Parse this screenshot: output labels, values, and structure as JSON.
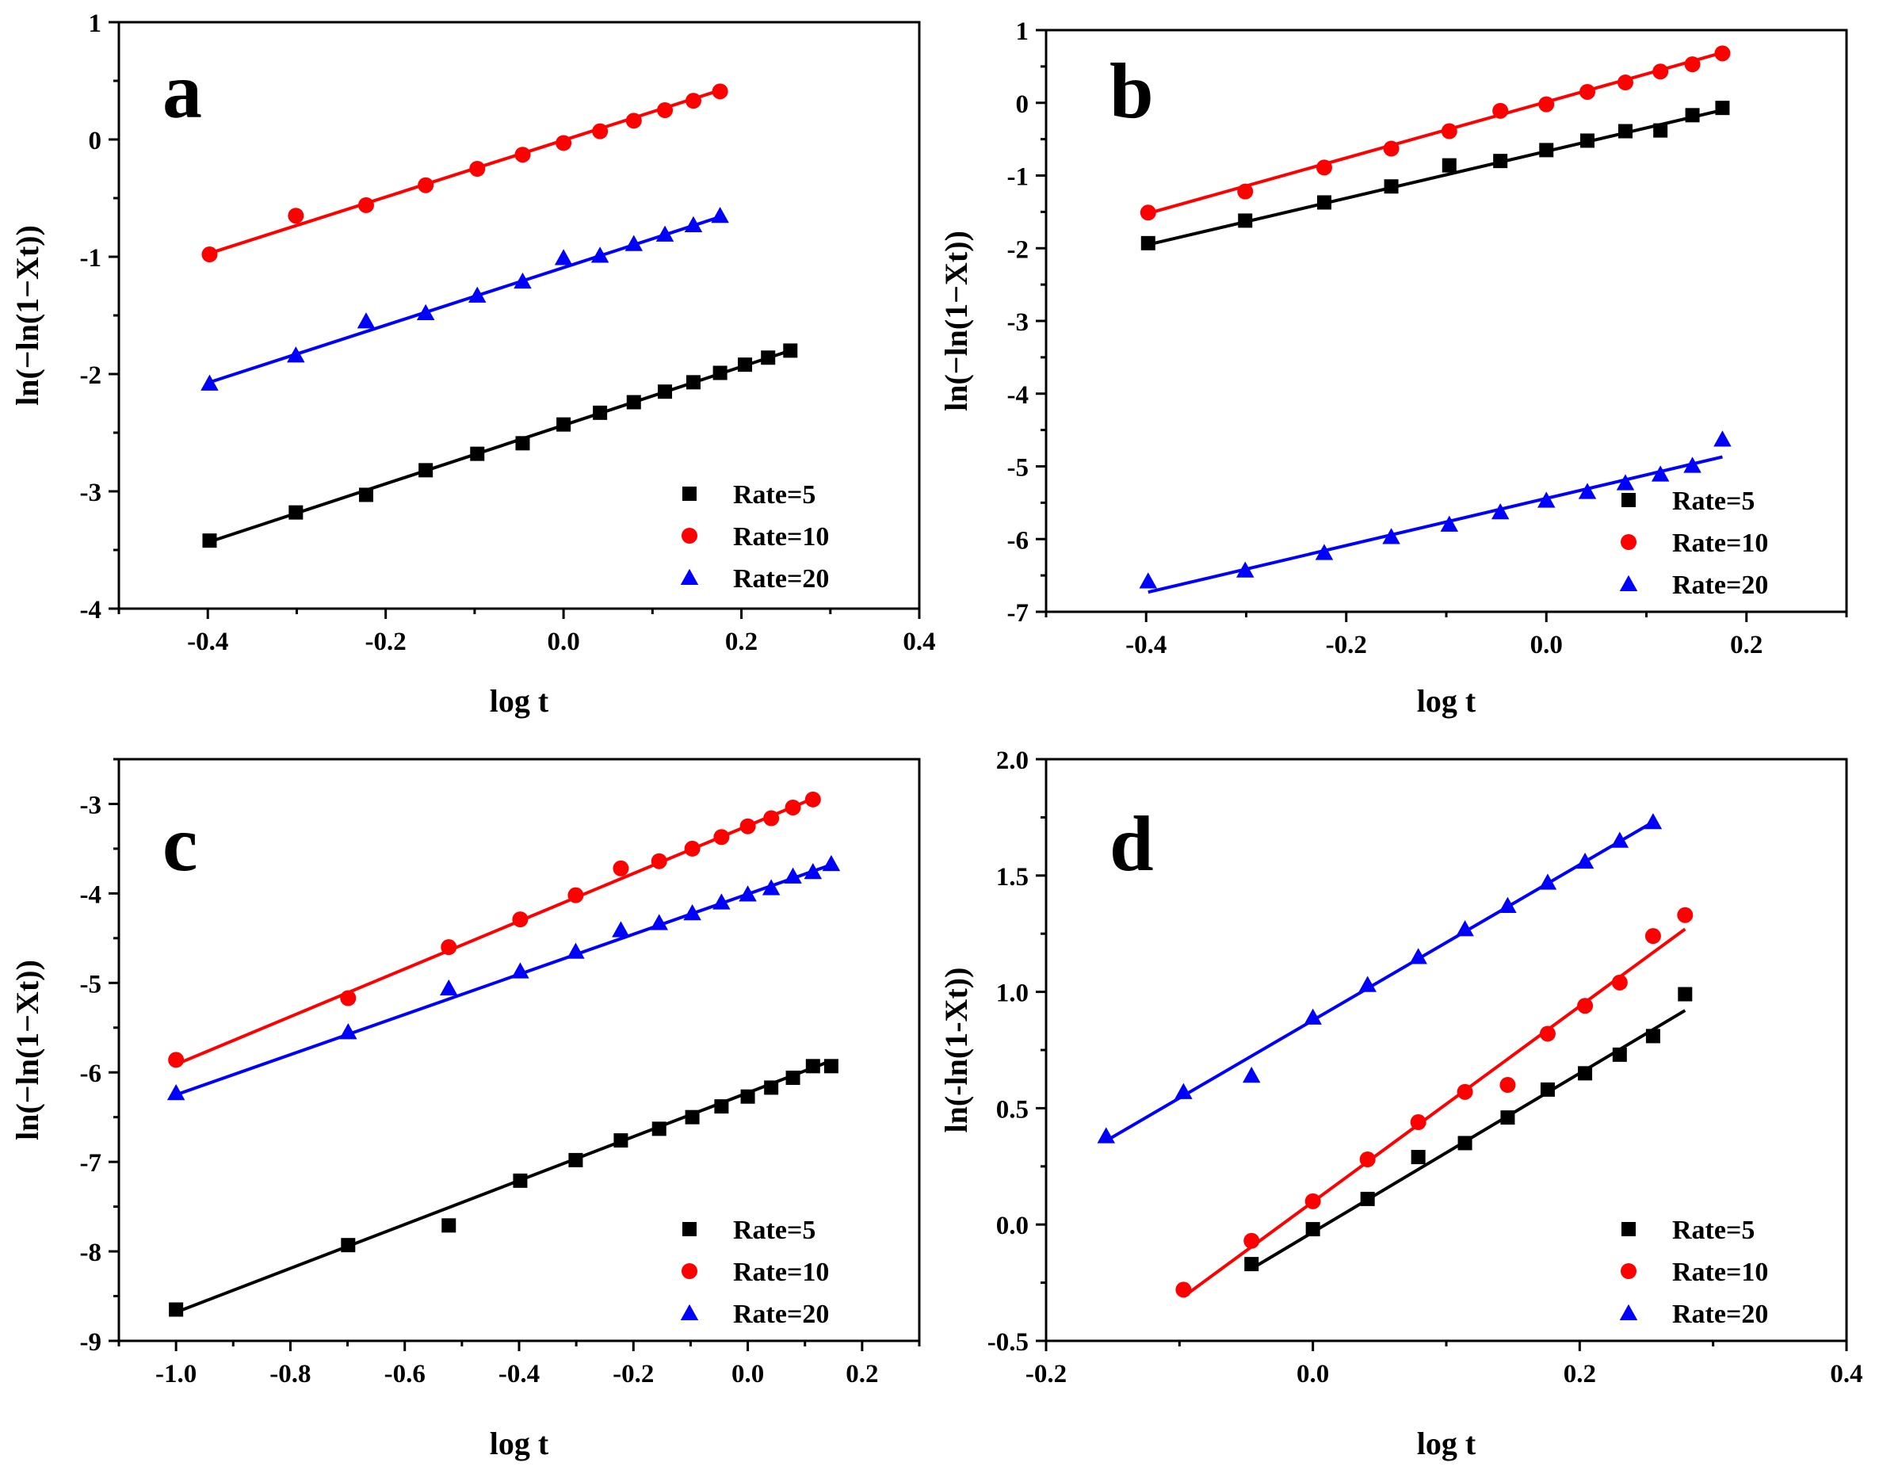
{
  "colors": {
    "rate5": "#000000",
    "rate10": "#ff0000",
    "rate20": "#0000ff"
  },
  "chart_data": [
    {
      "panel": "a",
      "type": "scatter",
      "xlabel": "log t",
      "ylabel": "ln(−ln(1−Xt))",
      "xlim": [
        -0.5,
        0.4
      ],
      "ylim": [
        -4,
        1
      ],
      "xticks": [
        -0.4,
        -0.2,
        0.0,
        0.2,
        0.4
      ],
      "xtick_labels": [
        "-0.4",
        "-0.2",
        "0.0",
        "0.2",
        "0.4"
      ],
      "yticks": [
        -4,
        -3,
        -2,
        -1,
        0,
        1
      ],
      "ytick_labels": [
        "-4",
        "-3",
        "-2",
        "-1",
        "0",
        "1"
      ],
      "legend_position": "bottom-right",
      "series": [
        {
          "name": "Rate=5",
          "marker": "square",
          "x": [
            -0.398,
            -0.301,
            -0.222,
            -0.155,
            -0.097,
            -0.046,
            0.0,
            0.041,
            0.079,
            0.114,
            0.146,
            0.176,
            0.204,
            0.23,
            0.255
          ],
          "y": [
            -3.42,
            -3.18,
            -3.03,
            -2.82,
            -2.68,
            -2.59,
            -2.43,
            -2.33,
            -2.24,
            -2.15,
            -2.07,
            -1.99,
            -1.92,
            -1.86,
            -1.8
          ],
          "fit": [
            [
              -0.398,
              -3.43
            ],
            [
              0.255,
              -1.8
            ]
          ]
        },
        {
          "name": "Rate=10",
          "marker": "circle",
          "x": [
            -0.398,
            -0.301,
            -0.222,
            -0.155,
            -0.097,
            -0.046,
            0.0,
            0.041,
            0.079,
            0.114,
            0.146,
            0.176
          ],
          "y": [
            -0.98,
            -0.65,
            -0.56,
            -0.39,
            -0.25,
            -0.13,
            -0.03,
            0.07,
            0.16,
            0.25,
            0.33,
            0.41
          ],
          "fit": [
            [
              -0.398,
              -0.97
            ],
            [
              0.176,
              0.42
            ]
          ]
        },
        {
          "name": "Rate=20",
          "marker": "triangle",
          "x": [
            -0.398,
            -0.301,
            -0.222,
            -0.155,
            -0.097,
            -0.046,
            0.0,
            0.041,
            0.079,
            0.114,
            0.146,
            0.176
          ],
          "y": [
            -2.08,
            -1.84,
            -1.55,
            -1.48,
            -1.33,
            -1.21,
            -1.01,
            -0.99,
            -0.89,
            -0.81,
            -0.73,
            -0.65
          ],
          "fit": [
            [
              -0.398,
              -2.07
            ],
            [
              0.176,
              -0.66
            ]
          ]
        }
      ]
    },
    {
      "panel": "b",
      "type": "scatter",
      "xlabel": "log t",
      "ylabel": "ln(−ln(1−Xt))",
      "xlim": [
        -0.5,
        0.3
      ],
      "ylim": [
        -7,
        1
      ],
      "xticks": [
        -0.4,
        -0.2,
        0.0,
        0.2
      ],
      "xtick_labels": [
        "-0.4",
        "-0.2",
        "0.0",
        "0.2"
      ],
      "yticks": [
        -7,
        -6,
        -5,
        -4,
        -3,
        -2,
        -1,
        0,
        1
      ],
      "ytick_labels": [
        "-7",
        "-6",
        "-5",
        "-4",
        "-3",
        "-2",
        "-1",
        "0",
        "1"
      ],
      "legend_position": "bottom-right",
      "series": [
        {
          "name": "Rate=5",
          "marker": "square",
          "x": [
            -0.398,
            -0.301,
            -0.222,
            -0.155,
            -0.097,
            -0.046,
            0.0,
            0.041,
            0.079,
            0.114,
            0.146,
            0.176
          ],
          "y": [
            -1.93,
            -1.62,
            -1.37,
            -1.15,
            -0.86,
            -0.8,
            -0.65,
            -0.52,
            -0.39,
            -0.38,
            -0.17,
            -0.07
          ],
          "fit": [
            [
              -0.398,
              -1.95
            ],
            [
              0.176,
              -0.1
            ]
          ]
        },
        {
          "name": "Rate=10",
          "marker": "circle",
          "x": [
            -0.398,
            -0.301,
            -0.222,
            -0.155,
            -0.097,
            -0.046,
            0.0,
            0.041,
            0.079,
            0.114,
            0.146,
            0.176
          ],
          "y": [
            -1.51,
            -1.22,
            -0.89,
            -0.63,
            -0.39,
            -0.11,
            -0.02,
            0.15,
            0.28,
            0.43,
            0.53,
            0.68
          ],
          "fit": [
            [
              -0.398,
              -1.52
            ],
            [
              0.176,
              0.69
            ]
          ]
        },
        {
          "name": "Rate=20",
          "marker": "triangle",
          "x": [
            -0.398,
            -0.301,
            -0.222,
            -0.155,
            -0.097,
            -0.046,
            0.0,
            0.041,
            0.079,
            0.114,
            0.146,
            0.176
          ],
          "y": [
            -6.58,
            -6.43,
            -6.19,
            -5.97,
            -5.8,
            -5.63,
            -5.47,
            -5.35,
            -5.23,
            -5.11,
            -4.99,
            -4.63
          ],
          "fit": [
            [
              -0.398,
              -6.73
            ],
            [
              0.176,
              -4.87
            ]
          ]
        }
      ]
    },
    {
      "panel": "c",
      "type": "scatter",
      "xlabel": "log t",
      "ylabel": "ln(−ln(1−Xt))",
      "xlim": [
        -1.1,
        0.3
      ],
      "ylim": [
        -9,
        -2.5
      ],
      "xticks": [
        -1.0,
        -0.8,
        -0.6,
        -0.4,
        -0.2,
        0.0,
        0.2
      ],
      "xtick_labels": [
        "-1.0",
        "-0.8",
        "-0.6",
        "-0.4",
        "-0.2",
        "0.0",
        "0.2"
      ],
      "yticks": [
        -9,
        -8,
        -7,
        -6,
        -5,
        -4,
        -3
      ],
      "ytick_labels": [
        "-9",
        "-8",
        "-7",
        "-6",
        "-5",
        "-4",
        "-3"
      ],
      "legend_position": "bottom-right",
      "series": [
        {
          "name": "Rate=5",
          "marker": "square",
          "x": [
            -1.0,
            -0.699,
            -0.523,
            -0.398,
            -0.301,
            -0.222,
            -0.155,
            -0.097,
            -0.046,
            0.0,
            0.041,
            0.079,
            0.114,
            0.146
          ],
          "y": [
            -8.65,
            -7.93,
            -7.71,
            -7.21,
            -6.98,
            -6.76,
            -6.63,
            -6.5,
            -6.38,
            -6.27,
            -6.17,
            -6.06,
            -5.93,
            -5.93
          ],
          "fit": [
            [
              -1.0,
              -8.68
            ],
            [
              0.146,
              -5.87
            ]
          ]
        },
        {
          "name": "Rate=10",
          "marker": "circle",
          "x": [
            -1.0,
            -0.699,
            -0.523,
            -0.398,
            -0.301,
            -0.222,
            -0.155,
            -0.097,
            -0.046,
            0.0,
            0.041,
            0.079,
            0.114
          ],
          "y": [
            -5.86,
            -5.17,
            -4.6,
            -4.29,
            -4.02,
            -3.72,
            -3.64,
            -3.5,
            -3.37,
            -3.25,
            -3.16,
            -3.04,
            -2.95
          ],
          "fit": [
            [
              -1.0,
              -5.91
            ],
            [
              0.114,
              -2.94
            ]
          ]
        },
        {
          "name": "Rate=20",
          "marker": "triangle",
          "x": [
            -1.0,
            -0.699,
            -0.523,
            -0.398,
            -0.301,
            -0.222,
            -0.155,
            -0.097,
            -0.046,
            0.0,
            0.041,
            0.079,
            0.114,
            0.146
          ],
          "y": [
            -6.23,
            -5.55,
            -5.06,
            -4.87,
            -4.65,
            -4.41,
            -4.33,
            -4.22,
            -4.1,
            -4.01,
            -3.94,
            -3.81,
            -3.76,
            -3.67
          ],
          "fit": [
            [
              -1.0,
              -6.25
            ],
            [
              0.146,
              -3.68
            ]
          ]
        }
      ]
    },
    {
      "panel": "d",
      "type": "scatter",
      "xlabel": "log t",
      "ylabel": "ln(-ln(1-Xt))",
      "xlim": [
        -0.2,
        0.4
      ],
      "ylim": [
        -0.5,
        2.0
      ],
      "xticks": [
        -0.2,
        0.0,
        0.2,
        0.4
      ],
      "xtick_labels": [
        "-0.2",
        "0.0",
        "0.2",
        "0.4"
      ],
      "yticks": [
        -0.5,
        0.0,
        0.5,
        1.0,
        1.5,
        2.0
      ],
      "ytick_labels": [
        "-0.5",
        "0.0",
        "0.5",
        "1.0",
        "1.5",
        "2.0"
      ],
      "legend_position": "bottom-right",
      "series": [
        {
          "name": "Rate=5",
          "marker": "square",
          "x": [
            -0.046,
            0.0,
            0.041,
            0.079,
            0.114,
            0.146,
            0.176,
            0.204,
            0.23,
            0.255,
            0.279
          ],
          "y": [
            -0.17,
            -0.02,
            0.11,
            0.29,
            0.35,
            0.46,
            0.58,
            0.65,
            0.73,
            0.81,
            0.99
          ],
          "fit": [
            [
              -0.046,
              -0.19
            ],
            [
              0.279,
              0.92
            ]
          ]
        },
        {
          "name": "Rate=10",
          "marker": "circle",
          "x": [
            -0.097,
            -0.046,
            0.0,
            0.041,
            0.079,
            0.114,
            0.146,
            0.176,
            0.204,
            0.23,
            0.255,
            0.279
          ],
          "y": [
            -0.28,
            -0.07,
            0.1,
            0.28,
            0.44,
            0.57,
            0.6,
            0.82,
            0.94,
            1.04,
            1.24,
            1.33
          ],
          "fit": [
            [
              -0.097,
              -0.31
            ],
            [
              0.279,
              1.27
            ]
          ]
        },
        {
          "name": "Rate=20",
          "marker": "triangle",
          "x": [
            -0.155,
            -0.097,
            -0.046,
            0.0,
            0.041,
            0.079,
            0.114,
            0.146,
            0.176,
            0.204,
            0.23,
            0.255
          ],
          "y": [
            0.38,
            0.57,
            0.64,
            0.89,
            1.03,
            1.15,
            1.27,
            1.37,
            1.47,
            1.56,
            1.65,
            1.73
          ],
          "fit": [
            [
              -0.155,
              0.36
            ],
            [
              0.255,
              1.73
            ]
          ]
        }
      ]
    }
  ]
}
